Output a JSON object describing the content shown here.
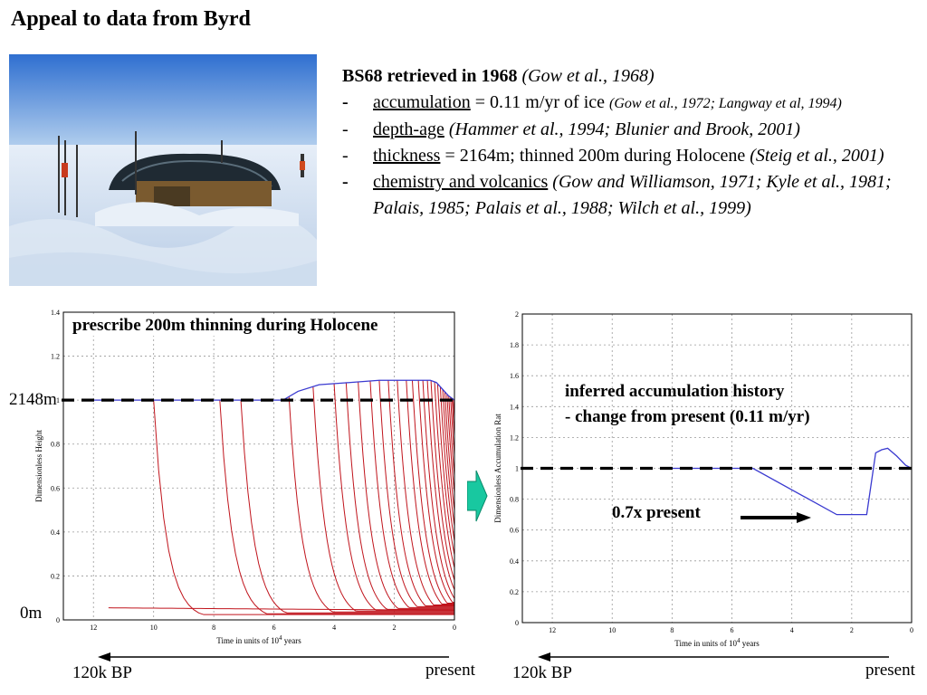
{
  "slide": {
    "title": "Appeal to data from Byrd"
  },
  "photo": {
    "description_icon": "ice-camp-photo"
  },
  "references": {
    "heading": "BS68 retrieved in 1968",
    "heading_cite": "(Gow et al., 1968)",
    "items": [
      {
        "bullet": "-",
        "term": "accumulation",
        "text": " = 0.11 m/yr of ice ",
        "cite": "(Gow et al., 1972; Langway et al, 1994)"
      },
      {
        "bullet": "-",
        "term": "depth-age",
        "text": " ",
        "cite": "(Hammer et al., 1994; Blunier and Brook, 2001)"
      },
      {
        "bullet": "-",
        "term": "thickness",
        "text": " = 2164m; thinned 200m during Holocene ",
        "cite": "(Steig et al., 2001)"
      },
      {
        "bullet": "-",
        "term": "chemistry and volcanics",
        "text": " ",
        "cite": "(Gow and Williamson, 1971; Kyle et al., 1981; Palais, 1985; Palais et al., 1988; Wilch et al., 1999)"
      }
    ]
  },
  "left_chart": {
    "annotation": "prescribe 200m thinning during Holocene",
    "label_2148": "2148m",
    "label_0": "0m",
    "arrow_left": "120k BP",
    "arrow_right": "present"
  },
  "right_chart": {
    "annotation_line1": "inferred accumulation history",
    "annotation_line2": "- change from present (0.11 m/yr)",
    "factor_label": "0.7x present",
    "arrow_left": "120k BP",
    "arrow_right": "present"
  },
  "colors": {
    "red_lines": "#c0141c",
    "blue_line": "#3a3ad0",
    "arrow_green": "#18c8a0"
  },
  "chart_data": [
    {
      "type": "line",
      "xlabel": "Time in units of 10^4 years",
      "xlabel_parts": [
        "Time in units of 10",
        "4",
        " years"
      ],
      "ylabel": "Dimensionless Height",
      "xlim": [
        13,
        0
      ],
      "ylim": [
        0,
        1.4
      ],
      "x_ticks": [
        12,
        10,
        8,
        6,
        4,
        2,
        0
      ],
      "y_ticks": [
        0,
        0.2,
        0.4,
        0.6,
        0.8,
        1,
        1.2,
        1.4
      ],
      "y_tick_labels": [
        "0",
        "0.2",
        "0.4",
        "0.6",
        "0.8",
        "1",
        "1.2",
        "1.4"
      ],
      "grid": true,
      "reference_line_y": 1.0,
      "surface_series": {
        "name": "surface",
        "x": [
          12,
          10,
          8,
          6,
          5.7,
          5.2,
          4.5,
          3.5,
          2.5,
          1.5,
          0.8,
          0.6,
          0.4,
          0.2,
          0
        ],
        "y": [
          1.0,
          1.0,
          1.0,
          1.0,
          1.0,
          1.04,
          1.07,
          1.08,
          1.09,
          1.09,
          1.09,
          1.08,
          1.05,
          1.02,
          1.0
        ]
      },
      "trajectory_start_times": [
        11.5,
        10.0,
        7.8,
        7.1,
        5.5,
        4.7,
        4.0,
        3.6,
        3.2,
        2.8,
        2.5,
        2.2,
        1.9,
        1.6,
        1.4,
        1.2,
        1.05,
        0.9,
        0.78,
        0.66,
        0.56,
        0.47,
        0.39,
        0.32,
        0.25,
        0.19,
        0.13,
        0.08,
        0.04
      ]
    },
    {
      "type": "line",
      "xlabel": "Time in units of 10^4 years",
      "xlabel_parts": [
        "Time in units of 10",
        "4",
        " years"
      ],
      "ylabel": "Dimensionless Accumulation Rat",
      "xlim": [
        13,
        0
      ],
      "ylim": [
        0,
        2
      ],
      "x_ticks": [
        12,
        10,
        8,
        6,
        4,
        2,
        0
      ],
      "y_ticks": [
        0,
        0.2,
        0.4,
        0.6,
        0.8,
        1,
        1.2,
        1.4,
        1.6,
        1.8,
        2
      ],
      "y_tick_labels": [
        "0",
        "0.2",
        "0.4",
        "0.6",
        "0.8",
        "1",
        "1.2",
        "1.4",
        "1.6",
        "1.8",
        "2"
      ],
      "grid": true,
      "reference_line_y": 1.0,
      "series": [
        {
          "x": [
            8,
            5.3,
            2.5,
            1.5,
            1.2,
            1.0,
            0.8,
            0.5,
            0.2,
            0
          ],
          "y": [
            1.0,
            1.0,
            0.7,
            0.7,
            1.1,
            1.12,
            1.13,
            1.08,
            1.02,
            1.0
          ]
        }
      ]
    }
  ]
}
